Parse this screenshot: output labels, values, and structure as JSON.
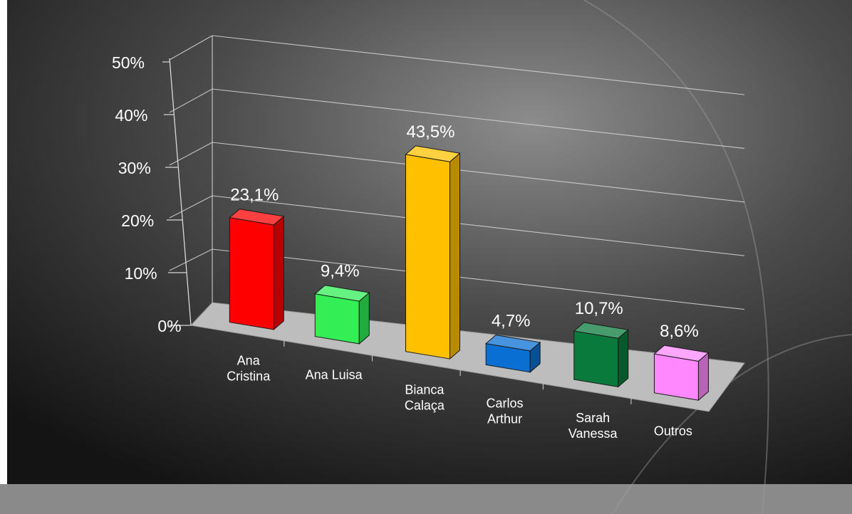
{
  "chart_data": {
    "type": "bar",
    "three_d": true,
    "categories": [
      "Ana\nCristina",
      "Ana Luisa",
      "Bianca\nCalaça",
      "Carlos\nArthur",
      "Sarah\nVanessa",
      "Outros"
    ],
    "values": [
      23.1,
      9.4,
      43.5,
      4.7,
      10.7,
      8.6
    ],
    "data_labels": [
      "23,1%",
      "9,4%",
      "43,5%",
      "4,7%",
      "10,7%",
      "8,6%"
    ],
    "bar_colors": [
      "#ff0000",
      "#33ee55",
      "#ffc000",
      "#0a6fd2",
      "#0a7a3c",
      "#ff88ff"
    ],
    "y_ticks": [
      "0%",
      "10%",
      "20%",
      "30%",
      "40%",
      "50%"
    ],
    "ylim": [
      0,
      50
    ],
    "grid": true,
    "legend": "none"
  },
  "colors": {
    "background": "#3a3a3a",
    "floor": "#bdbdbd",
    "text": "#ffffff",
    "gridline": "#d8d8d8"
  }
}
